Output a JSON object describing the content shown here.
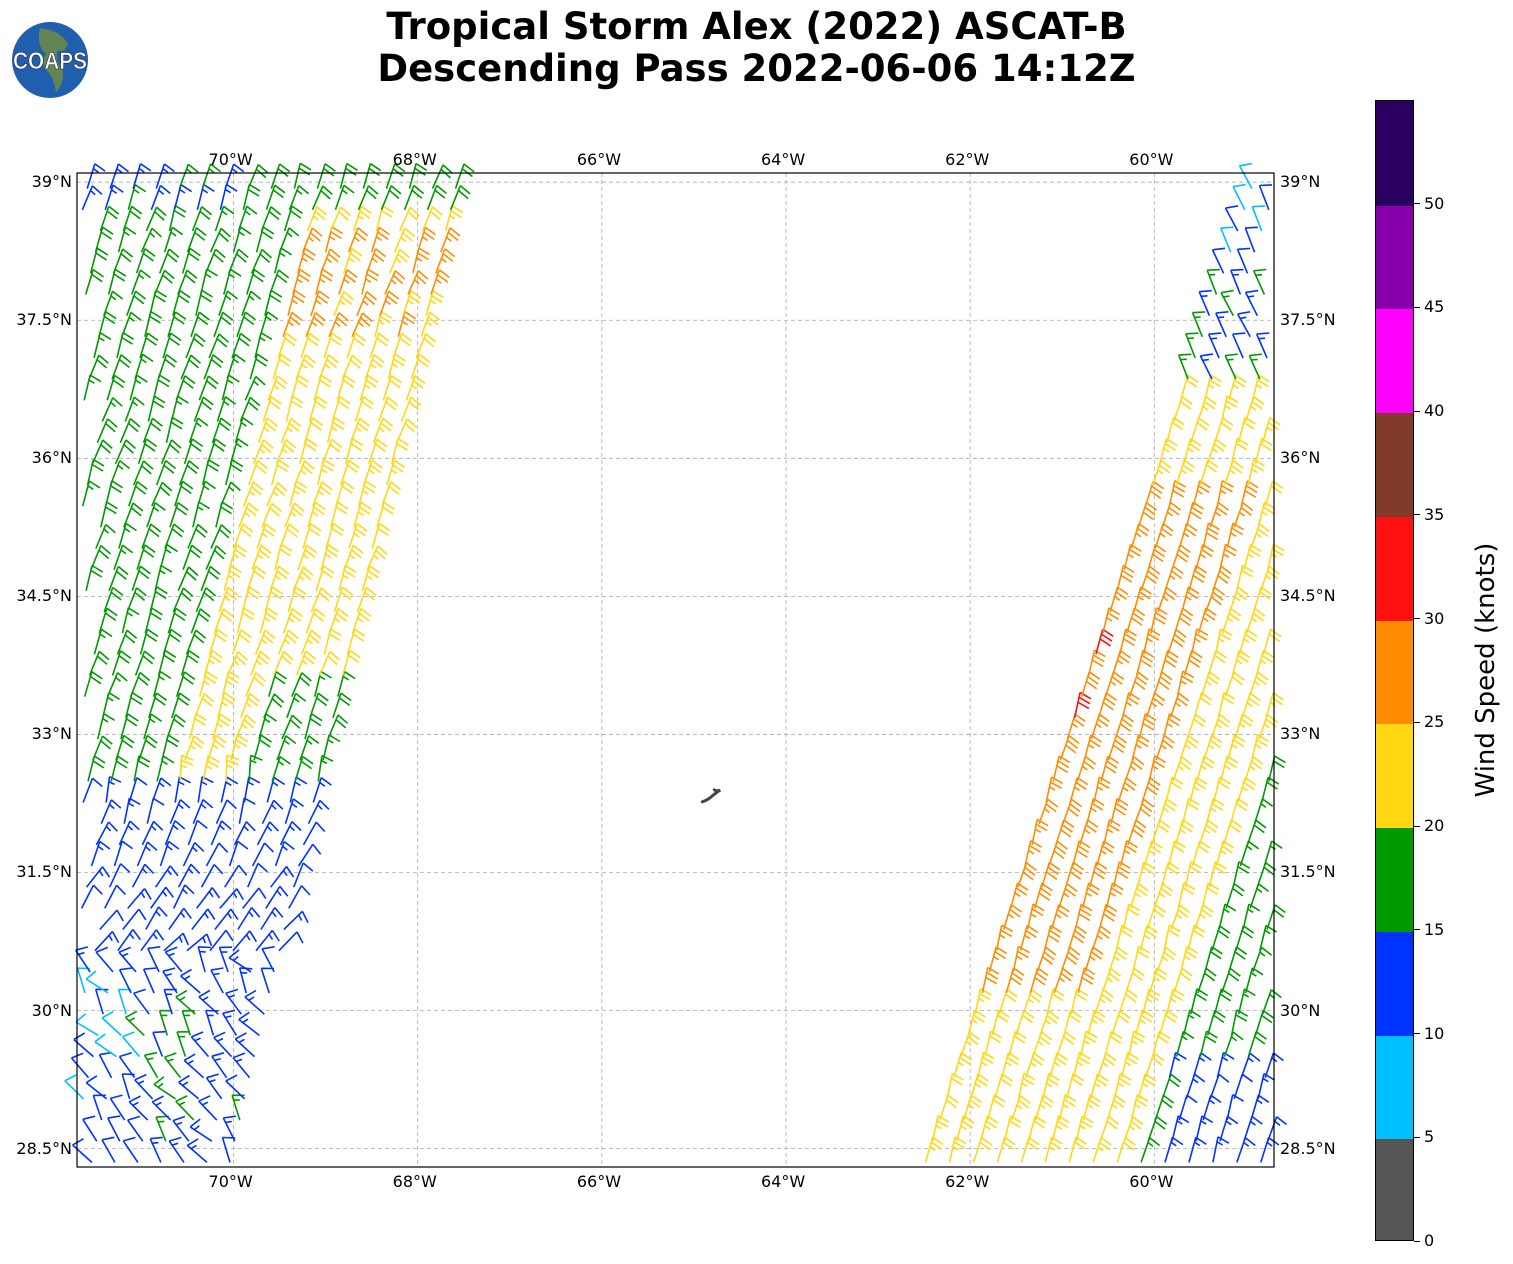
{
  "title": {
    "line1": "Tropical Storm Alex (2022) ASCAT-B",
    "line2": "Descending Pass 2022-06-06 14:12Z"
  },
  "logo": {
    "text": "COAPS"
  },
  "map": {
    "lon_range": [
      -71.7,
      -58.7
    ],
    "lat_range": [
      28.3,
      39.1
    ],
    "lon_ticks": [
      {
        "value": -70,
        "label": "70°W"
      },
      {
        "value": -68,
        "label": "68°W"
      },
      {
        "value": -66,
        "label": "66°W"
      },
      {
        "value": -64,
        "label": "64°W"
      },
      {
        "value": -62,
        "label": "62°W"
      },
      {
        "value": -60,
        "label": "60°W"
      }
    ],
    "lat_ticks": [
      {
        "value": 39,
        "label": "39°N"
      },
      {
        "value": 37.5,
        "label": "37.5°N"
      },
      {
        "value": 36,
        "label": "36°N"
      },
      {
        "value": 34.5,
        "label": "34.5°N"
      },
      {
        "value": 33,
        "label": "33°N"
      },
      {
        "value": 31.5,
        "label": "31.5°N"
      },
      {
        "value": 30,
        "label": "30°N"
      },
      {
        "value": 28.5,
        "label": "28.5°N"
      }
    ],
    "island": {
      "name": "Bermuda",
      "lon": -64.8,
      "lat": 32.3
    },
    "swaths": [
      {
        "name": "west",
        "east_edge_top": [
          39.1,
          -67.5
        ],
        "east_edge_bottom": [
          28.3,
          -70.0
        ]
      },
      {
        "name": "east",
        "west_edge_top": [
          38.6,
          -59.1
        ],
        "west_edge_bottom": [
          28.3,
          -62.55
        ]
      }
    ]
  },
  "colorbar": {
    "label": "Wind Speed (knots)",
    "bins": [
      {
        "min": 0,
        "max": 5,
        "color": "#555555"
      },
      {
        "min": 5,
        "max": 10,
        "color": "#00bfff"
      },
      {
        "min": 10,
        "max": 15,
        "color": "#0033ff"
      },
      {
        "min": 15,
        "max": 20,
        "color": "#009900"
      },
      {
        "min": 20,
        "max": 25,
        "color": "#ffd712"
      },
      {
        "min": 25,
        "max": 30,
        "color": "#ff8c00"
      },
      {
        "min": 30,
        "max": 35,
        "color": "#ff1010"
      },
      {
        "min": 35,
        "max": 40,
        "color": "#803c28"
      },
      {
        "min": 40,
        "max": 45,
        "color": "#ff00ff"
      },
      {
        "min": 45,
        "max": 50,
        "color": "#8800aa"
      },
      {
        "min": 50,
        "max": 55,
        "color": "#2a0060"
      }
    ],
    "ticks": [
      "0",
      "5",
      "10",
      "15",
      "20",
      "25",
      "30",
      "35",
      "40",
      "45",
      "50"
    ]
  }
}
